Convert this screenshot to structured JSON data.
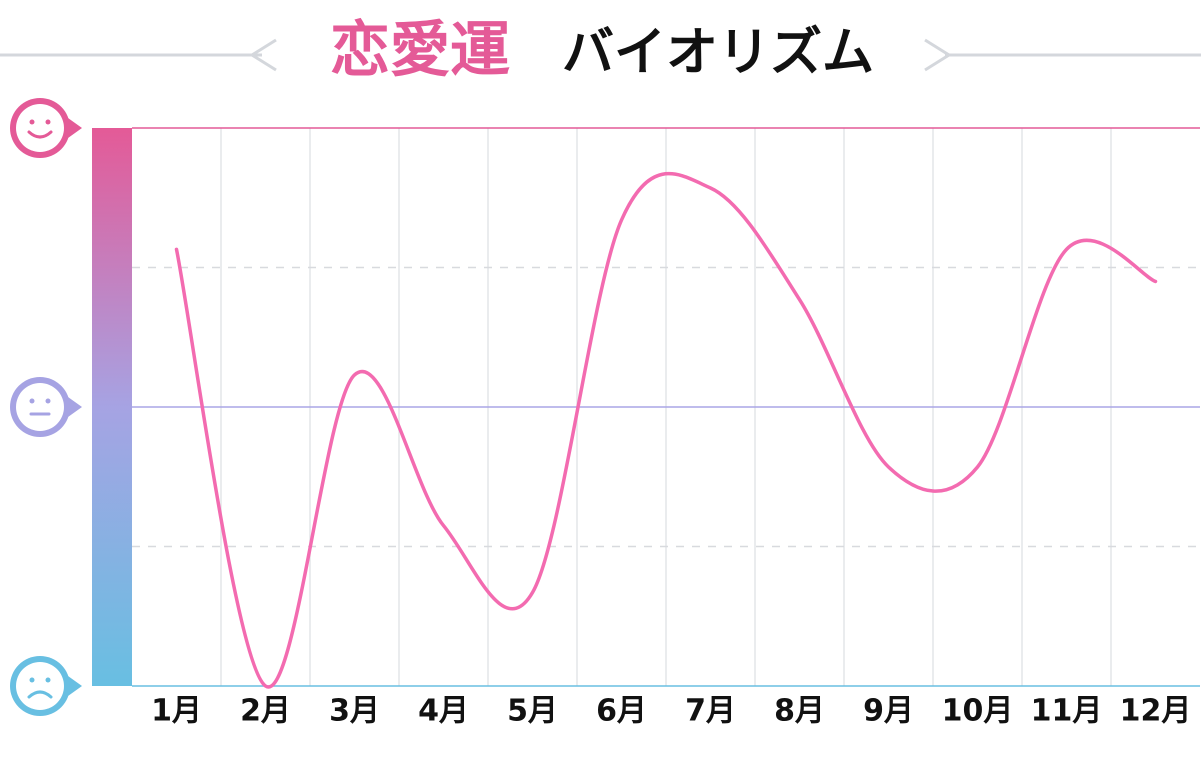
{
  "chart_data": {
    "type": "line",
    "title_highlight": "恋愛運",
    "title": "バイオリズム",
    "categories": [
      "1月",
      "2月",
      "3月",
      "4月",
      "5月",
      "6月",
      "7月",
      "8月",
      "9月",
      "10月",
      "11月",
      "12月"
    ],
    "series": [
      {
        "color": "#f36bb0",
        "values": [
          1.13,
          -2.0,
          0.23,
          -0.85,
          -1.33,
          1.34,
          1.57,
          0.77,
          -0.43,
          -0.43,
          1.13,
          0.9
        ]
      }
    ],
    "ylim": [
      -2,
      2
    ],
    "yticks": [
      -2,
      -1,
      0,
      1,
      2
    ],
    "grid": true
  }
}
